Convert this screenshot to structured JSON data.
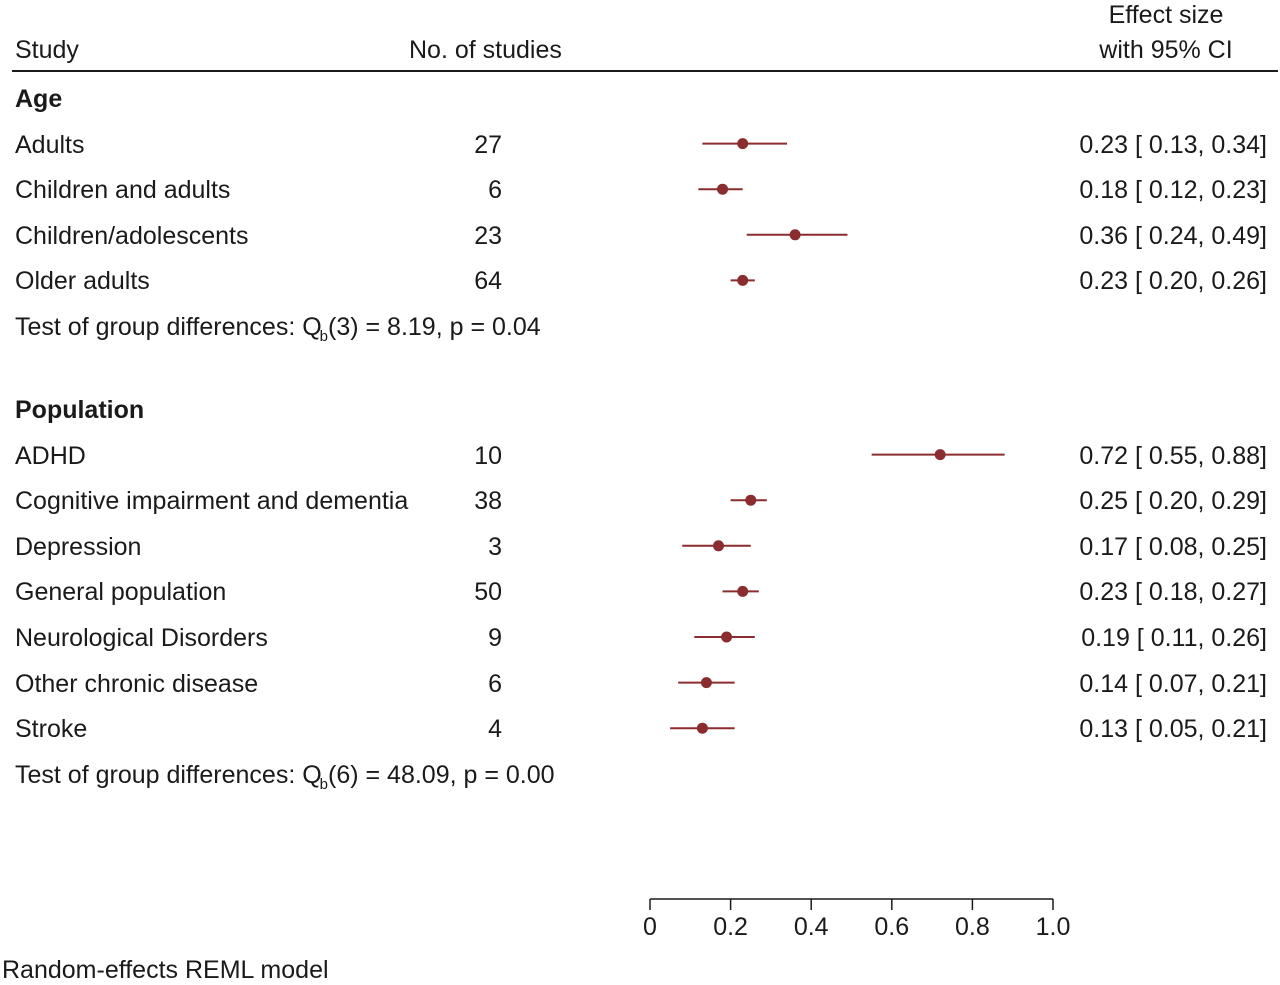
{
  "header": {
    "study": "Study",
    "n_studies": "No. of studies",
    "effect_line1": "Effect size",
    "effect_line2": "with 95% CI"
  },
  "footer": {
    "model": "Random-effects REML model"
  },
  "chart_data": {
    "type": "forest",
    "marker_color": "#8b2c2f",
    "xlim": [
      0,
      1.0
    ],
    "x_ticks": [
      "0",
      "0.2",
      "0.4",
      "0.6",
      "0.8",
      "1.0"
    ],
    "groups": [
      {
        "name": "Age",
        "studies": [
          {
            "label": "Adults",
            "n": "27",
            "est": 0.23,
            "lo": 0.13,
            "hi": 0.34,
            "ci_text": "0.23 [ 0.13,  0.34]"
          },
          {
            "label": "Children and adults",
            "n": "6",
            "est": 0.18,
            "lo": 0.12,
            "hi": 0.23,
            "ci_text": "0.18 [ 0.12,  0.23]"
          },
          {
            "label": "Children/adolescents",
            "n": "23",
            "est": 0.36,
            "lo": 0.24,
            "hi": 0.49,
            "ci_text": "0.36 [ 0.24,  0.49]"
          },
          {
            "label": "Older adults",
            "n": "64",
            "est": 0.23,
            "lo": 0.2,
            "hi": 0.26,
            "ci_text": "0.23 [ 0.20,  0.26]"
          }
        ],
        "test": {
          "prefix": "Test of group differences: Q",
          "sub": "b",
          "suffix": "(3) = 8.19, p = 0.04"
        }
      },
      {
        "name": "Population",
        "studies": [
          {
            "label": "ADHD",
            "n": "10",
            "est": 0.72,
            "lo": 0.55,
            "hi": 0.88,
            "ci_text": "0.72 [ 0.55,  0.88]"
          },
          {
            "label": "Cognitive impairment and dementia",
            "n": "38",
            "est": 0.25,
            "lo": 0.2,
            "hi": 0.29,
            "ci_text": "0.25 [ 0.20,  0.29]"
          },
          {
            "label": "Depression",
            "n": "3",
            "est": 0.17,
            "lo": 0.08,
            "hi": 0.25,
            "ci_text": "0.17 [ 0.08,  0.25]"
          },
          {
            "label": "General population",
            "n": "50",
            "est": 0.23,
            "lo": 0.18,
            "hi": 0.27,
            "ci_text": "0.23 [ 0.18,  0.27]"
          },
          {
            "label": "Neurological Disorders",
            "n": "9",
            "est": 0.19,
            "lo": 0.11,
            "hi": 0.26,
            "ci_text": "0.19 [ 0.11,  0.26]"
          },
          {
            "label": "Other chronic disease",
            "n": "6",
            "est": 0.14,
            "lo": 0.07,
            "hi": 0.21,
            "ci_text": "0.14 [ 0.07,  0.21]"
          },
          {
            "label": "Stroke",
            "n": "4",
            "est": 0.13,
            "lo": 0.05,
            "hi": 0.21,
            "ci_text": "0.13 [ 0.05,  0.21]"
          }
        ],
        "test": {
          "prefix": "Test of group differences: Q",
          "sub": "b",
          "suffix": "(6) = 48.09, p = 0.00"
        }
      }
    ]
  }
}
